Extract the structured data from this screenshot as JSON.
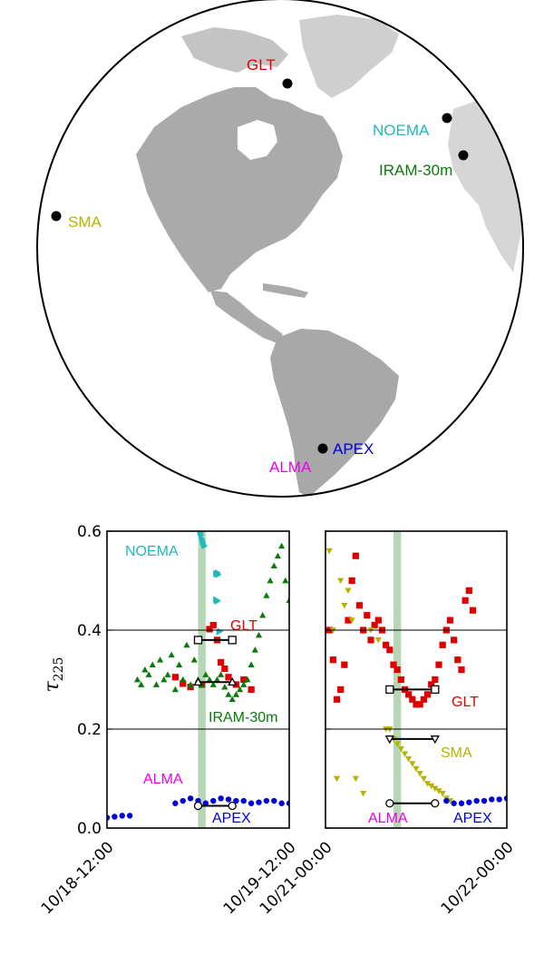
{
  "map": {
    "sites": [
      {
        "name": "GLT",
        "color": "#e00000"
      },
      {
        "name": "NOEMA",
        "color": "#20b8b8"
      },
      {
        "name": "IRAM-30m",
        "color": "#0a7a0a"
      },
      {
        "name": "SMA",
        "color": "#b4b400"
      },
      {
        "name": "ALMA",
        "color": "#ee00ee"
      },
      {
        "name": "APEX",
        "color": "#0000dd"
      }
    ]
  },
  "chart_data": [
    {
      "type": "scatter",
      "ylabel": "τ",
      "ylabel_sub": "225",
      "ylim": [
        0,
        0.6
      ],
      "yticks": [
        "0.0",
        "0.2",
        "0.4",
        "0.6"
      ],
      "x_range": [
        "10/18-12:00",
        "10/19-12:00"
      ],
      "xtick_labels": [
        "10/18-12:00",
        "10/19-12:00"
      ],
      "shaded_band": [
        "10/19-00:00",
        "10/19-01:00"
      ],
      "series": [
        {
          "name": "NOEMA",
          "color": "#20b8b8",
          "marker": "triangle-right",
          "points": [
            [
              "10/19-00:15",
              0.598
            ],
            [
              "10/19-00:20",
              0.596
            ],
            [
              "10/19-00:25",
              0.592
            ],
            [
              "10/19-00:30",
              0.585
            ],
            [
              "10/19-00:35",
              0.58
            ],
            [
              "10/19-00:40",
              0.576
            ],
            [
              "10/19-00:45",
              0.572
            ],
            [
              "10/19-00:50",
              0.57
            ],
            [
              "10/19-02:20",
              0.515
            ],
            [
              "10/19-02:25",
              0.512
            ],
            [
              "10/19-02:30",
              0.514
            ],
            [
              "10/19-02:35",
              0.516
            ],
            [
              "10/19-02:40",
              0.512
            ],
            [
              "10/19-02:20",
              0.462
            ],
            [
              "10/19-02:25",
              0.46
            ],
            [
              "10/19-02:30",
              0.458
            ],
            [
              "10/19-02:35",
              0.46
            ],
            [
              "10/19-02:45",
              0.396
            ],
            [
              "10/19-02:55",
              0.398
            ]
          ]
        },
        {
          "name": "GLT",
          "color": "#e00000",
          "marker": "square",
          "points": [
            [
              "10/19-01:30",
              0.402
            ],
            [
              "10/19-02:00",
              0.41
            ],
            [
              "10/19-02:30",
              0.38
            ],
            [
              "10/19-03:00",
              0.335
            ],
            [
              "10/19-03:30",
              0.322
            ],
            [
              "10/19-04:00",
              0.305
            ],
            [
              "10/19-05:00",
              0.29
            ],
            [
              "10/19-06:00",
              0.3
            ],
            [
              "10/19-07:00",
              0.28
            ],
            [
              "10/18-21:00",
              0.305
            ],
            [
              "10/18-22:00",
              0.292
            ],
            [
              "10/18-23:00",
              0.285
            ],
            [
              "10/19-00:30",
              0.29
            ]
          ]
        },
        {
          "name": "IRAM-30m",
          "color": "#0a7a0a",
          "marker": "triangle-up",
          "points": [
            [
              "10/18-16:00",
              0.3
            ],
            [
              "10/18-16:30",
              0.29
            ],
            [
              "10/18-17:00",
              0.32
            ],
            [
              "10/18-17:30",
              0.31
            ],
            [
              "10/18-18:00",
              0.33
            ],
            [
              "10/18-18:30",
              0.29
            ],
            [
              "10/18-19:00",
              0.34
            ],
            [
              "10/18-19:30",
              0.3
            ],
            [
              "10/18-20:00",
              0.31
            ],
            [
              "10/18-20:30",
              0.35
            ],
            [
              "10/18-21:00",
              0.28
            ],
            [
              "10/18-21:30",
              0.33
            ],
            [
              "10/18-22:00",
              0.3
            ],
            [
              "10/18-22:30",
              0.37
            ],
            [
              "10/18-23:00",
              0.29
            ],
            [
              "10/18-23:30",
              0.34
            ],
            [
              "10/19-00:00",
              0.3
            ],
            [
              "10/19-00:30",
              0.29
            ],
            [
              "10/19-01:00",
              0.31
            ],
            [
              "10/19-01:30",
              0.3
            ],
            [
              "10/19-02:00",
              0.29
            ],
            [
              "10/19-02:30",
              0.3
            ],
            [
              "10/19-03:00",
              0.31
            ],
            [
              "10/19-03:30",
              0.285
            ],
            [
              "10/19-04:00",
              0.27
            ],
            [
              "10/19-04:30",
              0.26
            ],
            [
              "10/19-05:00",
              0.27
            ],
            [
              "10/19-05:30",
              0.28
            ],
            [
              "10/19-06:00",
              0.29
            ],
            [
              "10/19-06:30",
              0.3
            ],
            [
              "10/19-07:00",
              0.33
            ],
            [
              "10/19-07:30",
              0.36
            ],
            [
              "10/19-08:00",
              0.39
            ],
            [
              "10/19-08:30",
              0.43
            ],
            [
              "10/19-09:00",
              0.47
            ],
            [
              "10/19-09:30",
              0.5
            ],
            [
              "10/19-10:00",
              0.53
            ],
            [
              "10/19-10:30",
              0.55
            ],
            [
              "10/19-11:00",
              0.57
            ],
            [
              "10/19-11:30",
              0.5
            ],
            [
              "10/19-12:00",
              0.46
            ]
          ]
        },
        {
          "name": "ALMA",
          "color": "#ee00ee",
          "marker": "none",
          "points": []
        },
        {
          "name": "APEX",
          "color": "#0000dd",
          "marker": "circle",
          "points": [
            [
              "10/18-12:00",
              0.021
            ],
            [
              "10/18-13:00",
              0.023
            ],
            [
              "10/18-14:00",
              0.025
            ],
            [
              "10/18-15:00",
              0.025
            ],
            [
              "10/18-21:00",
              0.05
            ],
            [
              "10/18-22:00",
              0.055
            ],
            [
              "10/18-23:00",
              0.06
            ],
            [
              "10/19-00:00",
              0.055
            ],
            [
              "10/19-01:00",
              0.05
            ],
            [
              "10/19-02:00",
              0.055
            ],
            [
              "10/19-03:00",
              0.06
            ],
            [
              "10/19-04:00",
              0.058
            ],
            [
              "10/19-05:00",
              0.055
            ],
            [
              "10/19-06:00",
              0.055
            ],
            [
              "10/19-07:00",
              0.05
            ],
            [
              "10/19-08:00",
              0.052
            ],
            [
              "10/19-09:00",
              0.055
            ],
            [
              "10/19-10:00",
              0.055
            ],
            [
              "10/19-11:00",
              0.05
            ],
            [
              "10/19-12:00",
              0.05
            ]
          ]
        }
      ],
      "ranges": [
        {
          "site": "GLT",
          "marker": "square",
          "y": 0.38,
          "x": [
            "10/19-00:00",
            "10/19-04:30"
          ]
        },
        {
          "site": "IRAM-30m",
          "marker": "triangle-up",
          "y": 0.295,
          "x": [
            "10/19-00:00",
            "10/19-04:30"
          ]
        },
        {
          "site": "APEX",
          "marker": "circle",
          "y": 0.045,
          "x": [
            "10/19-00:00",
            "10/19-04:30"
          ]
        }
      ],
      "labels": [
        "NOEMA",
        "GLT",
        "IRAM-30m",
        "ALMA",
        "APEX"
      ]
    },
    {
      "type": "scatter",
      "ylim": [
        0,
        0.6
      ],
      "x_range": [
        "10/21-00:00",
        "10/22-00:00"
      ],
      "xtick_labels": [
        "10/21-00:00",
        "10/22-00:00"
      ],
      "shaded_band": [
        "10/21-09:00",
        "10/21-10:00"
      ],
      "series": [
        {
          "name": "GLT",
          "color": "#e00000",
          "marker": "square",
          "points": [
            [
              "10/21-00:30",
              0.4
            ],
            [
              "10/21-01:00",
              0.34
            ],
            [
              "10/21-01:30",
              0.26
            ],
            [
              "10/21-02:00",
              0.28
            ],
            [
              "10/21-02:30",
              0.33
            ],
            [
              "10/21-03:00",
              0.42
            ],
            [
              "10/21-03:30",
              0.5
            ],
            [
              "10/21-04:00",
              0.55
            ],
            [
              "10/21-04:30",
              0.45
            ],
            [
              "10/21-05:00",
              0.4
            ],
            [
              "10/21-05:30",
              0.43
            ],
            [
              "10/21-06:00",
              0.38
            ],
            [
              "10/21-06:30",
              0.41
            ],
            [
              "10/21-07:00",
              0.42
            ],
            [
              "10/21-07:30",
              0.4
            ],
            [
              "10/21-08:00",
              0.37
            ],
            [
              "10/21-08:30",
              0.36
            ],
            [
              "10/21-09:00",
              0.33
            ],
            [
              "10/21-09:30",
              0.32
            ],
            [
              "10/21-10:00",
              0.3
            ],
            [
              "10/21-10:30",
              0.28
            ],
            [
              "10/21-11:00",
              0.27
            ],
            [
              "10/21-11:30",
              0.26
            ],
            [
              "10/21-12:00",
              0.25
            ],
            [
              "10/21-12:30",
              0.25
            ],
            [
              "10/21-13:00",
              0.26
            ],
            [
              "10/21-13:30",
              0.27
            ],
            [
              "10/21-14:00",
              0.29
            ],
            [
              "10/21-14:30",
              0.3
            ],
            [
              "10/21-15:00",
              0.33
            ],
            [
              "10/21-15:30",
              0.37
            ],
            [
              "10/21-16:00",
              0.4
            ],
            [
              "10/21-16:30",
              0.42
            ],
            [
              "10/21-17:00",
              0.38
            ],
            [
              "10/21-17:30",
              0.34
            ],
            [
              "10/21-18:00",
              0.32
            ],
            [
              "10/21-18:30",
              0.46
            ],
            [
              "10/21-19:00",
              0.48
            ],
            [
              "10/21-19:30",
              0.44
            ]
          ]
        },
        {
          "name": "SMA",
          "color": "#b4b400",
          "marker": "triangle-down",
          "points": [
            [
              "10/21-00:30",
              0.56
            ],
            [
              "10/21-01:00",
              0.4
            ],
            [
              "10/21-01:30",
              0.1
            ],
            [
              "10/21-02:00",
              0.5
            ],
            [
              "10/21-02:30",
              0.45
            ],
            [
              "10/21-03:00",
              0.48
            ],
            [
              "10/21-03:30",
              0.42
            ],
            [
              "10/21-04:00",
              0.1
            ],
            [
              "10/21-05:00",
              0.07
            ],
            [
              "10/21-06:00",
              0.4
            ],
            [
              "10/21-07:00",
              0.38
            ],
            [
              "10/21-08:00",
              0.2
            ],
            [
              "10/21-08:30",
              0.2
            ],
            [
              "10/21-09:00",
              0.18
            ],
            [
              "10/21-09:30",
              0.17
            ],
            [
              "10/21-10:00",
              0.16
            ],
            [
              "10/21-10:30",
              0.15
            ],
            [
              "10/21-11:00",
              0.14
            ],
            [
              "10/21-11:30",
              0.13
            ],
            [
              "10/21-12:00",
              0.12
            ],
            [
              "10/21-12:30",
              0.11
            ],
            [
              "10/21-13:00",
              0.1
            ],
            [
              "10/21-13:30",
              0.09
            ],
            [
              "10/21-14:00",
              0.085
            ],
            [
              "10/21-14:30",
              0.08
            ],
            [
              "10/21-15:00",
              0.075
            ],
            [
              "10/21-15:30",
              0.07
            ],
            [
              "10/21-16:00",
              0.06
            ],
            [
              "10/21-16:30",
              0.055
            ]
          ]
        },
        {
          "name": "ALMA",
          "color": "#ee00ee",
          "marker": "none",
          "points": []
        },
        {
          "name": "APEX",
          "color": "#0000dd",
          "marker": "circle",
          "points": [
            [
              "10/21-16:00",
              0.055
            ],
            [
              "10/21-17:00",
              0.05
            ],
            [
              "10/21-18:00",
              0.05
            ],
            [
              "10/21-19:00",
              0.052
            ],
            [
              "10/21-20:00",
              0.055
            ],
            [
              "10/21-21:00",
              0.055
            ],
            [
              "10/21-22:00",
              0.058
            ],
            [
              "10/21-23:00",
              0.058
            ],
            [
              "10/22-00:00",
              0.06
            ]
          ]
        }
      ],
      "ranges": [
        {
          "site": "GLT",
          "marker": "square",
          "y": 0.28,
          "x": [
            "10/21-08:30",
            "10/21-14:30"
          ]
        },
        {
          "site": "SMA",
          "marker": "triangle-down",
          "y": 0.18,
          "x": [
            "10/21-08:30",
            "10/21-14:30"
          ]
        },
        {
          "site": "APEX",
          "marker": "circle",
          "y": 0.05,
          "x": [
            "10/21-08:30",
            "10/21-14:30"
          ]
        }
      ],
      "labels": [
        "GLT",
        "SMA",
        "ALMA",
        "APEX"
      ]
    }
  ]
}
